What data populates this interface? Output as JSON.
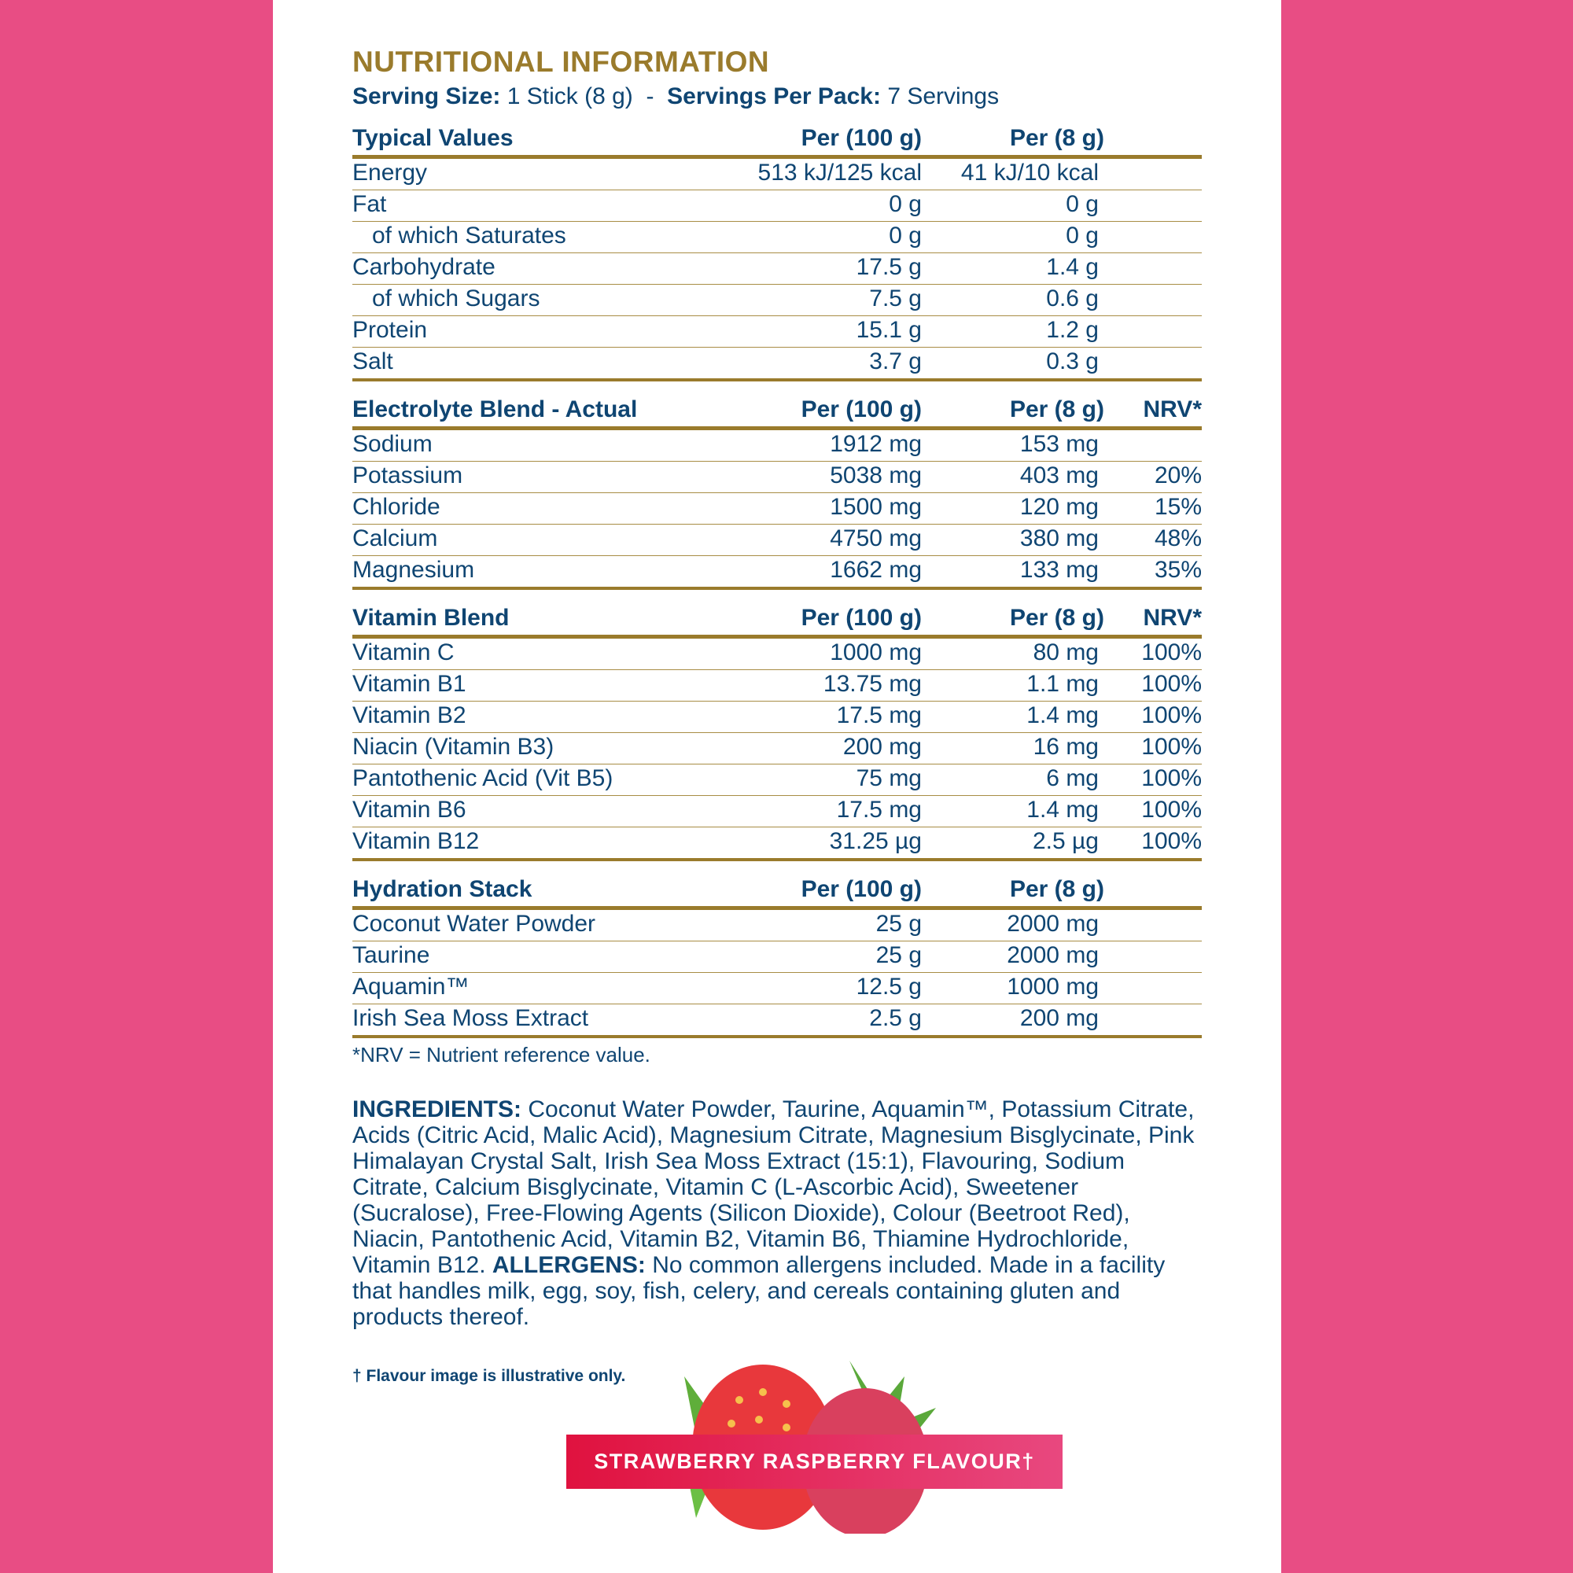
{
  "colors": {
    "background_side": "#e84d84",
    "title_gold": "#9a7b2c",
    "text_navy": "#0f4572",
    "banner_start": "#e0123f",
    "banner_end": "#e8487f"
  },
  "title": "NUTRITIONAL INFORMATION",
  "serving": {
    "size_label": "Serving Size:",
    "size_value": "1 Stick (8 g)",
    "separator": "-",
    "per_pack_label": "Servings Per Pack:",
    "per_pack_value": "7 Servings"
  },
  "sections": [
    {
      "headers": [
        "Typical Values",
        "Per (100 g)",
        "Per (8 g)",
        ""
      ],
      "rows": [
        {
          "name": "Energy",
          "per100": "513 kJ/125 kcal",
          "per8": "41 kJ/10 kcal",
          "nrv": "",
          "indent": false
        },
        {
          "name": "Fat",
          "per100": "0 g",
          "per8": "0 g",
          "nrv": "",
          "indent": false
        },
        {
          "name": "of which Saturates",
          "per100": "0 g",
          "per8": "0 g",
          "nrv": "",
          "indent": true
        },
        {
          "name": "Carbohydrate",
          "per100": "17.5 g",
          "per8": "1.4 g",
          "nrv": "",
          "indent": false
        },
        {
          "name": "of which Sugars",
          "per100": "7.5 g",
          "per8": "0.6 g",
          "nrv": "",
          "indent": true
        },
        {
          "name": "Protein",
          "per100": "15.1 g",
          "per8": "1.2 g",
          "nrv": "",
          "indent": false
        },
        {
          "name": "Salt",
          "per100": "3.7 g",
          "per8": "0.3 g",
          "nrv": "",
          "indent": false
        }
      ]
    },
    {
      "headers": [
        "Electrolyte Blend - Actual",
        "Per (100 g)",
        "Per (8 g)",
        "NRV*"
      ],
      "rows": [
        {
          "name": "Sodium",
          "per100": "1912 mg",
          "per8": "153 mg",
          "nrv": ""
        },
        {
          "name": "Potassium",
          "per100": "5038 mg",
          "per8": "403 mg",
          "nrv": "20%"
        },
        {
          "name": "Chloride",
          "per100": "1500 mg",
          "per8": "120 mg",
          "nrv": "15%"
        },
        {
          "name": "Calcium",
          "per100": "4750 mg",
          "per8": "380 mg",
          "nrv": "48%"
        },
        {
          "name": "Magnesium",
          "per100": "1662 mg",
          "per8": "133 mg",
          "nrv": "35%"
        }
      ]
    },
    {
      "headers": [
        "Vitamin Blend",
        "Per (100 g)",
        "Per (8 g)",
        "NRV*"
      ],
      "rows": [
        {
          "name": "Vitamin C",
          "per100": "1000 mg",
          "per8": "80 mg",
          "nrv": "100%"
        },
        {
          "name": "Vitamin B1",
          "per100": "13.75 mg",
          "per8": "1.1 mg",
          "nrv": "100%"
        },
        {
          "name": "Vitamin B2",
          "per100": "17.5 mg",
          "per8": "1.4 mg",
          "nrv": "100%"
        },
        {
          "name": "Niacin (Vitamin B3)",
          "per100": "200 mg",
          "per8": "16 mg",
          "nrv": "100%"
        },
        {
          "name": "Pantothenic Acid (Vit B5)",
          "per100": "75 mg",
          "per8": "6 mg",
          "nrv": "100%"
        },
        {
          "name": "Vitamin B6",
          "per100": "17.5 mg",
          "per8": "1.4 mg",
          "nrv": "100%"
        },
        {
          "name": "Vitamin B12",
          "per100": "31.25 µg",
          "per8": "2.5 µg",
          "nrv": "100%"
        }
      ]
    },
    {
      "headers": [
        "Hydration Stack",
        "Per (100 g)",
        "Per (8 g)",
        ""
      ],
      "rows": [
        {
          "name": "Coconut Water Powder",
          "per100": "25 g",
          "per8": "2000 mg",
          "nrv": ""
        },
        {
          "name": "Taurine",
          "per100": "25 g",
          "per8": "2000 mg",
          "nrv": ""
        },
        {
          "name": "Aquamin™",
          "per100": "12.5 g",
          "per8": "1000 mg",
          "nrv": ""
        },
        {
          "name": "Irish Sea Moss Extract",
          "per100": "2.5 g",
          "per8": "200 mg",
          "nrv": ""
        }
      ]
    }
  ],
  "footnote": "*NRV = Nutrient reference value.",
  "ingredients": {
    "label": "INGREDIENTS:",
    "text": " Coconut Water Powder, Taurine, Aquamin™, Potassium Citrate, Acids (Citric Acid, Malic Acid), Magnesium Citrate, Magnesium Bisglycinate, Pink Himalayan Crystal Salt, Irish Sea Moss Extract (15:1), Flavouring, Sodium Citrate, Calcium Bisglycinate, Vitamin C (L-Ascorbic Acid), Sweetener (Sucralose), Free-Flowing Agents (Silicon Dioxide), Colour (Beetroot Red), Niacin, Pantothenic Acid, Vitamin B2, Vitamin B6, Thiamine Hydrochloride, Vitamin B12. ",
    "allergens_label": "ALLERGENS:",
    "allergens_text": " No common allergens included. Made in a facility that handles milk, egg, soy, fish, celery, and cereals containing gluten and products thereof."
  },
  "flavour_note": "† Flavour image is illustrative only.",
  "flavour_banner": "STRAWBERRY RASPBERRY FLAVOUR†",
  "fruit_image": "strawberry-raspberry-illustration"
}
